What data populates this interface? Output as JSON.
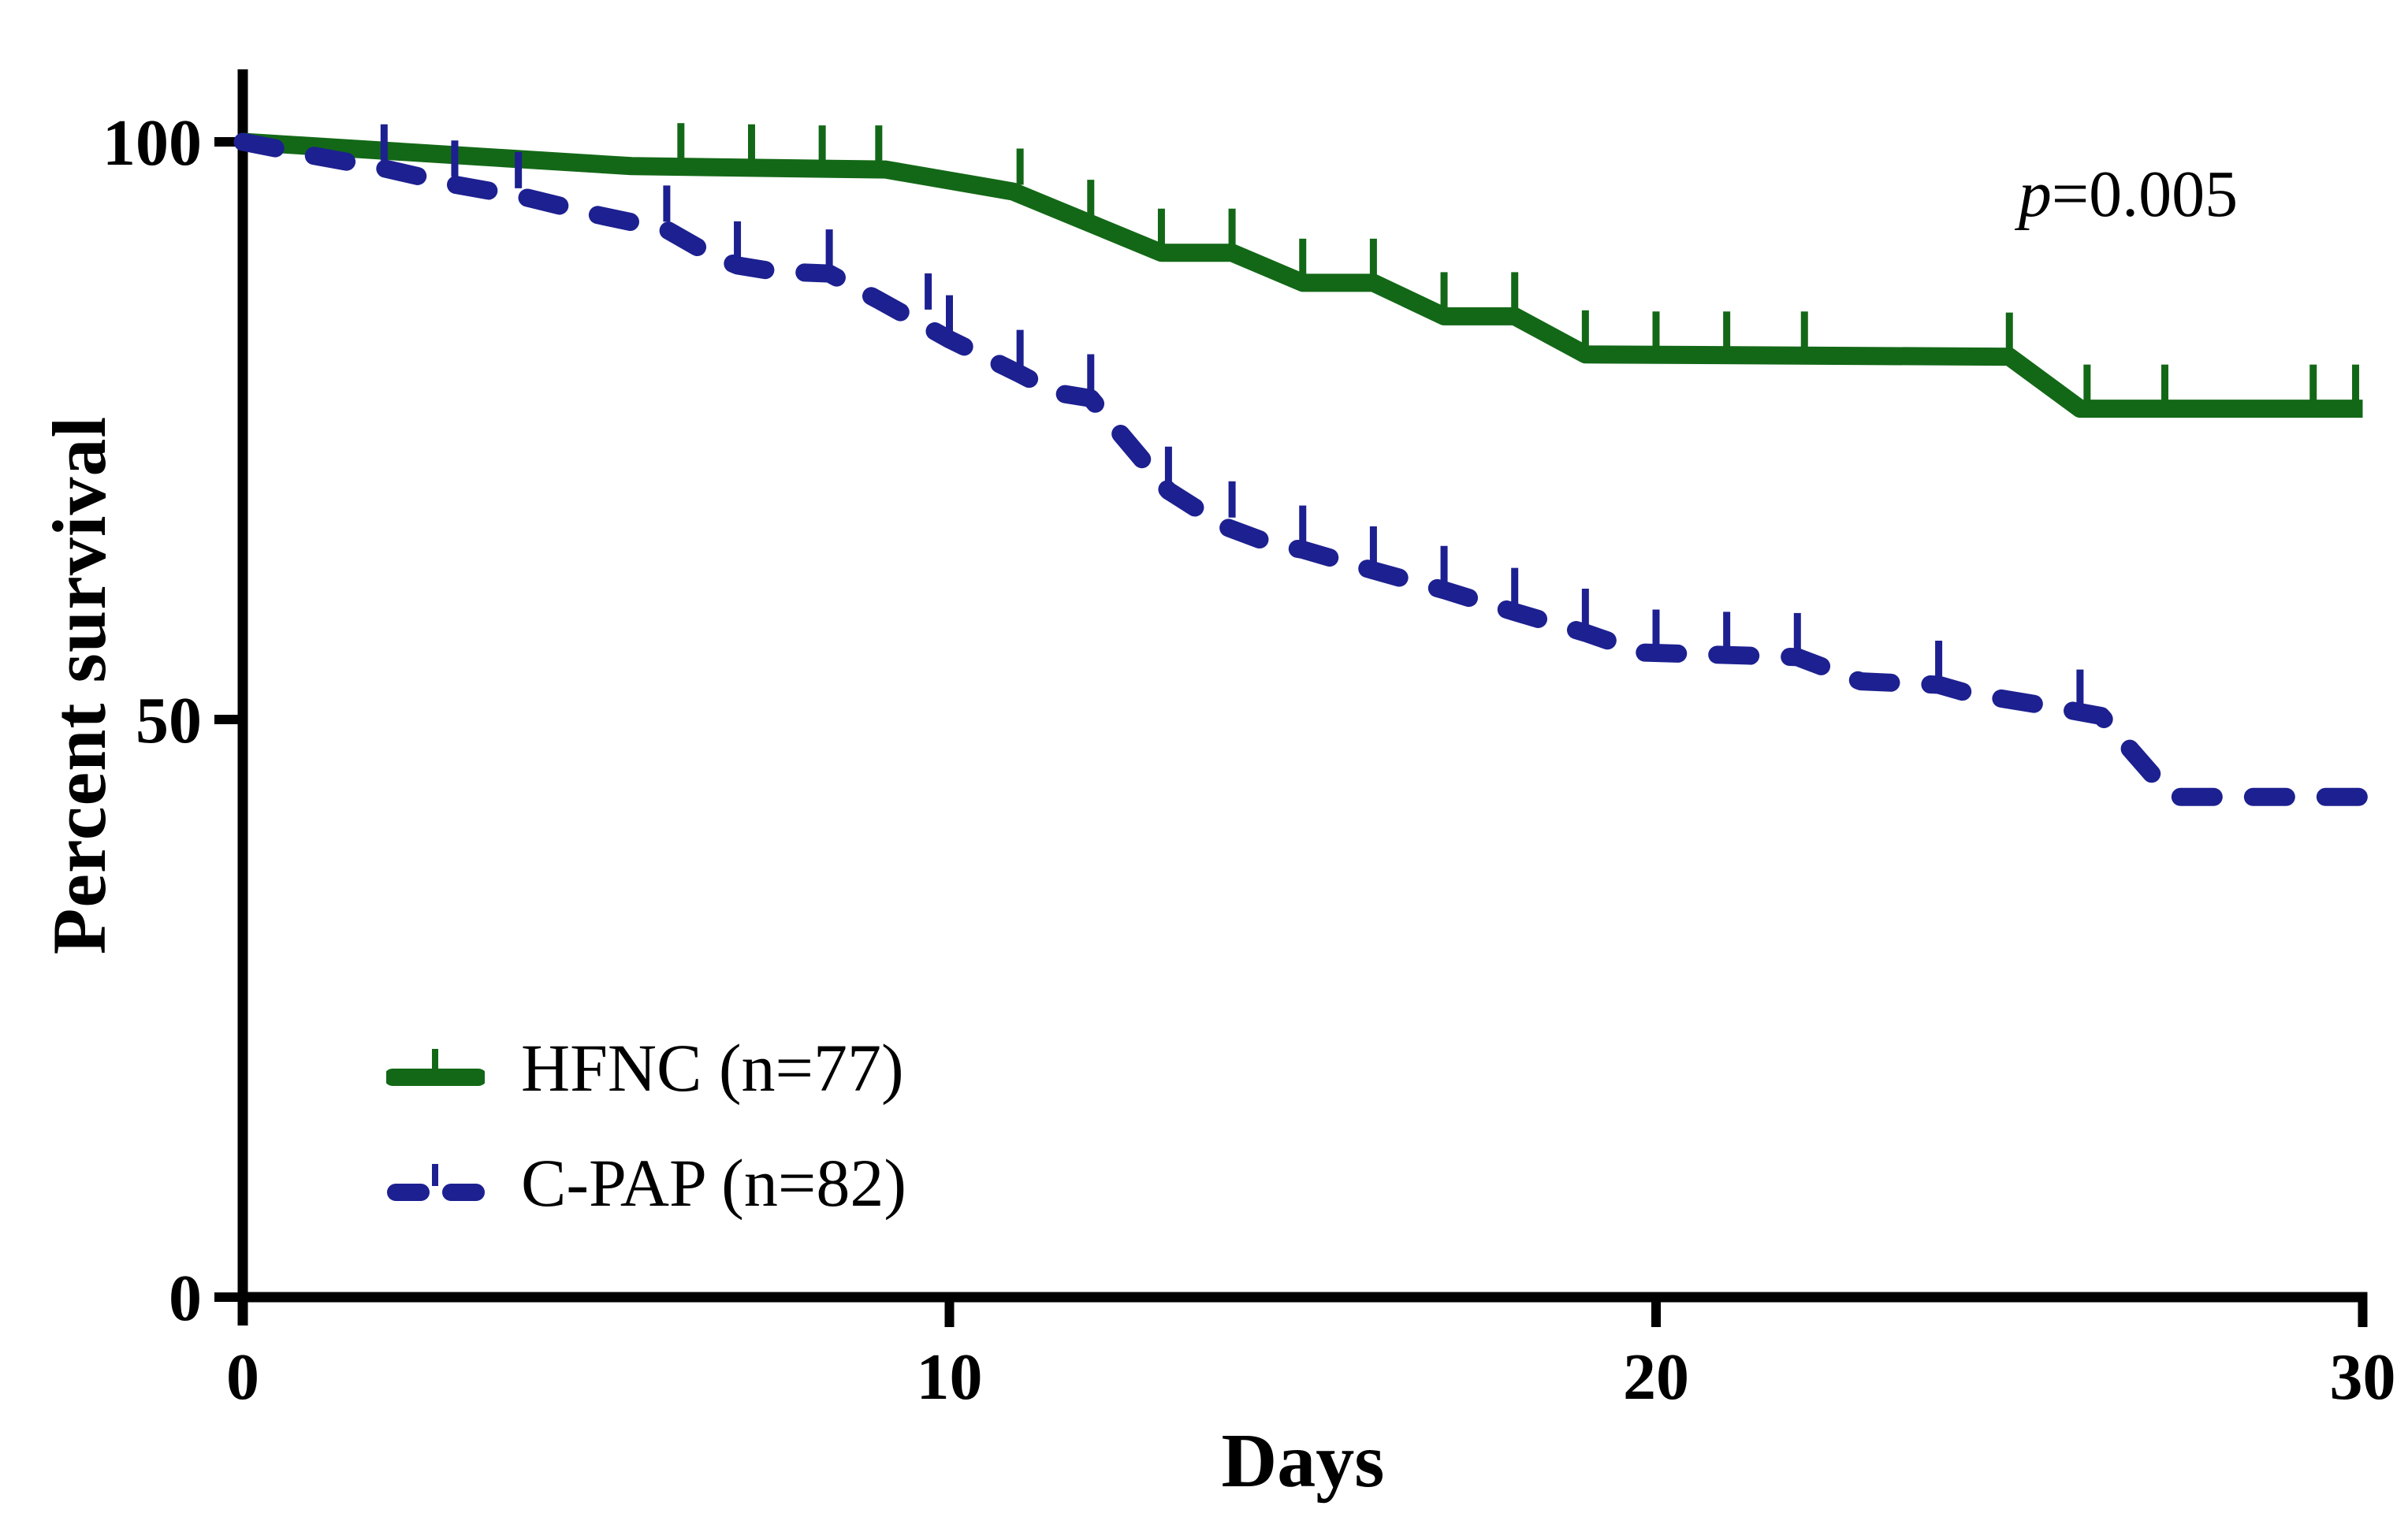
{
  "figure": {
    "xlabel": "Days",
    "ylabel": "Percent survival",
    "p_annotation": {
      "symbol": "p",
      "rest": "=0.005"
    }
  },
  "chart_data": {
    "type": "line",
    "subtype": "kaplan-meier-survival",
    "title": "",
    "xlabel": "Days",
    "ylabel": "Percent survival",
    "xlim": [
      0,
      30
    ],
    "ylim": [
      0,
      100
    ],
    "x_ticks": [
      0,
      10,
      20,
      30
    ],
    "y_ticks": [
      0,
      50,
      100
    ],
    "grid": false,
    "legend_position": "lower-left-inside",
    "annotation": "p=0.005",
    "series": [
      {
        "name": "HFNC (n=77)",
        "color": "#136817",
        "style": "solid",
        "points": [
          [
            0,
            100
          ],
          [
            5.5,
            97.9
          ],
          [
            9.1,
            97.6
          ],
          [
            10.9,
            95.7
          ],
          [
            13,
            90.4
          ],
          [
            14,
            90.4
          ],
          [
            15,
            87.8
          ],
          [
            16,
            87.8
          ],
          [
            17,
            84.9
          ],
          [
            18,
            84.9
          ],
          [
            19,
            81.6
          ],
          [
            25,
            81.4
          ],
          [
            26,
            76.9
          ],
          [
            30,
            76.9
          ]
        ],
        "censor_ticks": [
          [
            6.2,
            97.8
          ],
          [
            7.2,
            97.7
          ],
          [
            8.2,
            97.6
          ],
          [
            9,
            97.6
          ],
          [
            11,
            95.6
          ],
          [
            12,
            92.9
          ],
          [
            13,
            90.4
          ],
          [
            14,
            90.4
          ],
          [
            15,
            87.8
          ],
          [
            16,
            87.8
          ],
          [
            17,
            84.9
          ],
          [
            18,
            84.9
          ],
          [
            19,
            81.6
          ],
          [
            20,
            81.5
          ],
          [
            21,
            81.5
          ],
          [
            22.1,
            81.5
          ],
          [
            25,
            81.4
          ],
          [
            26.1,
            76.9
          ],
          [
            27.2,
            76.9
          ],
          [
            29.3,
            76.9
          ],
          [
            29.9,
            76.9
          ]
        ]
      },
      {
        "name": "C-PAP (n=82)",
        "color": "#1d2090",
        "style": "dashed",
        "points": [
          [
            0,
            100
          ],
          [
            1,
            98.8
          ],
          [
            2,
            97.7
          ],
          [
            3,
            96.3
          ],
          [
            4,
            95.2
          ],
          [
            5,
            93.7
          ],
          [
            6,
            92.4
          ],
          [
            6.6,
            90.3
          ],
          [
            7,
            89.3
          ],
          [
            7.5,
            88.8
          ],
          [
            8.3,
            88.6
          ],
          [
            9,
            86.3
          ],
          [
            10,
            82.9
          ],
          [
            11,
            79.9
          ],
          [
            11.5,
            78.3
          ],
          [
            12,
            77.8
          ],
          [
            13.1,
            69.8
          ],
          [
            13.9,
            66.7
          ],
          [
            14.6,
            65.1
          ],
          [
            15,
            64.7
          ],
          [
            16,
            62.9
          ],
          [
            17,
            61.2
          ],
          [
            18,
            59.3
          ],
          [
            19,
            57.5
          ],
          [
            19.8,
            55.8
          ],
          [
            22,
            55.4
          ],
          [
            22.9,
            53.3
          ],
          [
            24,
            53
          ],
          [
            24.4,
            52.3
          ],
          [
            25.5,
            51.2
          ],
          [
            26.3,
            50.3
          ],
          [
            27.3,
            43.3
          ],
          [
            30,
            43.3
          ]
        ],
        "censor_ticks": [
          [
            2,
            97.7
          ],
          [
            3,
            96.3
          ],
          [
            3.9,
            95.3
          ],
          [
            6,
            92.4
          ],
          [
            7,
            89.3
          ],
          [
            8.3,
            88.6
          ],
          [
            9.7,
            84.8
          ],
          [
            10,
            82.9
          ],
          [
            11,
            79.9
          ],
          [
            12,
            77.8
          ],
          [
            13.1,
            69.8
          ],
          [
            14,
            66.8
          ],
          [
            15,
            64.7
          ],
          [
            16,
            62.9
          ],
          [
            17,
            61.2
          ],
          [
            18,
            59.3
          ],
          [
            19,
            57.5
          ],
          [
            20,
            55.7
          ],
          [
            21,
            55.5
          ],
          [
            22,
            55.4
          ],
          [
            24,
            53
          ],
          [
            26,
            50.5
          ]
        ]
      }
    ]
  }
}
